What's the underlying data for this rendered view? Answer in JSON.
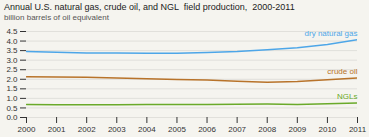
{
  "chart_data": {
    "type": "line",
    "title": "Annual U.S. natural gas, crude oil, and NGL  field production,  2000-2011",
    "subtitle": "billion barrels of oil equivalent",
    "x": [
      2000,
      2001,
      2002,
      2003,
      2004,
      2005,
      2006,
      2007,
      2008,
      2009,
      2010,
      2011
    ],
    "series": [
      {
        "name": "dry natural gas",
        "color": "#4da6e8",
        "values": [
          3.46,
          3.42,
          3.38,
          3.37,
          3.36,
          3.36,
          3.4,
          3.45,
          3.55,
          3.65,
          3.82,
          4.07
        ]
      },
      {
        "name": "crude oil",
        "color": "#b8732a",
        "values": [
          2.13,
          2.12,
          2.1,
          2.07,
          2.03,
          1.99,
          1.96,
          1.9,
          1.84,
          1.89,
          1.98,
          2.07
        ]
      },
      {
        "name": "NGLs",
        "color": "#6aaa2a",
        "values": [
          0.68,
          0.67,
          0.67,
          0.67,
          0.68,
          0.68,
          0.68,
          0.69,
          0.7,
          0.68,
          0.72,
          0.76
        ]
      }
    ],
    "xlim": [
      2000,
      2011
    ],
    "xticks": [
      2000,
      2001,
      2002,
      2003,
      2004,
      2005,
      2006,
      2007,
      2008,
      2009,
      2010,
      2011
    ],
    "ylim": [
      0,
      4.5
    ],
    "yticks": [
      {
        "value": 0,
        "label": "0.0"
      },
      0.5,
      {
        "value": 1,
        "label": "1.0"
      },
      1.5,
      {
        "value": 2,
        "label": "2.0"
      },
      2.5,
      {
        "value": 3,
        "label": "3.0"
      },
      3.5,
      {
        "value": 4,
        "label": "4.0"
      },
      4.5
    ],
    "grid": true
  }
}
